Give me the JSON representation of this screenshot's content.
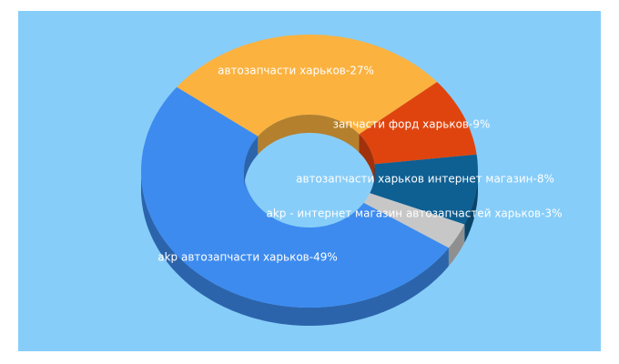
{
  "chart_data": {
    "type": "donut3d",
    "labels": [
      "автозапчасти харьков-27%",
      "запчасти форд харьков-9%",
      "автозапчасти харьков интернет магазин-8%",
      "akp - интернет магазин автозапчастей харьков-3%",
      "akp автозапчасти харьков-49%"
    ],
    "values": [
      27,
      9,
      8,
      3,
      49
    ],
    "colors": [
      "#fbb23f",
      "#e0440e",
      "#0e5f92",
      "#c7c7c7",
      "#3d8bef"
    ]
  }
}
